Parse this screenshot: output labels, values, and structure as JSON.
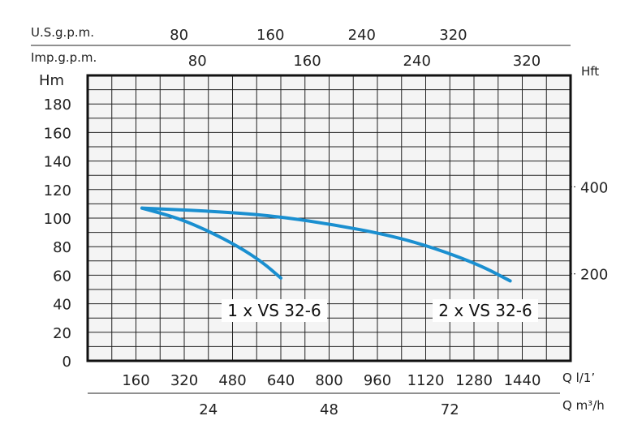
{
  "chart_data": {
    "type": "line",
    "axes": {
      "left": {
        "label": "Hm",
        "ticks": [
          0,
          20,
          40,
          60,
          80,
          100,
          120,
          140,
          160,
          180
        ],
        "range": [
          0,
          200
        ]
      },
      "right": {
        "label": "Hft",
        "ticks": [
          200,
          400
        ]
      },
      "top_usgpm": {
        "label": "U.S.g.p.m.",
        "ticks": [
          80,
          160,
          240,
          320
        ]
      },
      "top_impgpm": {
        "label": "Imp.g.p.m.",
        "ticks": [
          80,
          160,
          240,
          320
        ]
      },
      "bottom_lmin": {
        "label": "Q l/1’",
        "ticks": [
          160,
          320,
          480,
          640,
          800,
          960,
          1120,
          1280,
          1440
        ],
        "range": [
          0,
          1600
        ]
      },
      "bottom_m3h": {
        "label": "Q m³/h",
        "ticks": [
          24,
          48,
          72
        ]
      }
    },
    "grid": true,
    "series": [
      {
        "name": "1 x VS 32-6",
        "color": "#1a8fd0",
        "points": [
          [
            180,
            107
          ],
          [
            300,
            100
          ],
          [
            400,
            91
          ],
          [
            500,
            80
          ],
          [
            580,
            69
          ],
          [
            640,
            58
          ]
        ]
      },
      {
        "name": "2 x VS 32-6",
        "color": "#1a8fd0",
        "points": [
          [
            180,
            107
          ],
          [
            400,
            105
          ],
          [
            600,
            102
          ],
          [
            800,
            96
          ],
          [
            1000,
            88
          ],
          [
            1150,
            79
          ],
          [
            1300,
            67
          ],
          [
            1400,
            56
          ]
        ]
      }
    ]
  }
}
